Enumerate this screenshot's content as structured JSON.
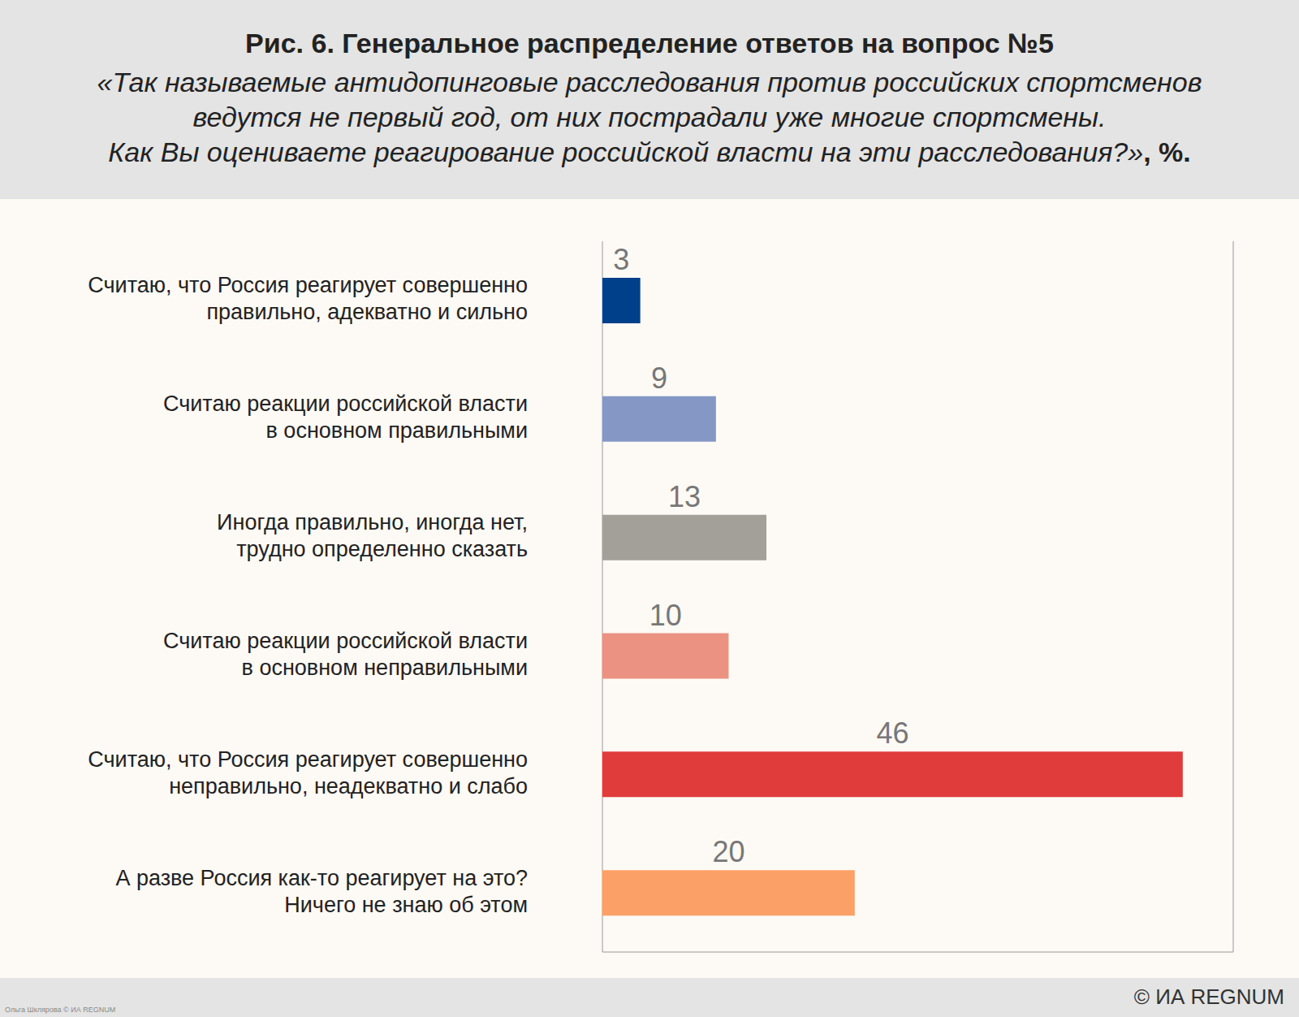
{
  "chart_data": {
    "type": "bar",
    "title": "Рис. 6. Генеральное распределение ответов на вопрос №5",
    "subtitle": "«Так называемые антидопинговые расследования против российских спортсменов\nведутся не первый год, от них пострадали уже многие спортсмены.\nКак Вы оцениваете реагирование российской власти на эти расследования?», %.",
    "categories": [
      "Считаю, что Россия реагирует совершенно\nправильно, адекватно и сильно",
      "Считаю реакции российской власти\nв основном правильными",
      "Иногда правильно, иногда нет,\nтрудно определенно сказать",
      "Считаю реакции российской власти\nв основном неправильными",
      "Считаю, что Россия реагирует совершенно\nнеправильно, неадекватно и слабо",
      "А разве Россия как-то реагирует на это?\nНичего не знаю об этом"
    ],
    "values": [
      3,
      9,
      13,
      10,
      46,
      20
    ],
    "colors": [
      "#003f8a",
      "#8497c5",
      "#a3a09a",
      "#ec9282",
      "#e03c3c",
      "#fba066"
    ],
    "xlim": [
      0,
      50
    ],
    "xticks": [
      0,
      10,
      20,
      30,
      40,
      50
    ],
    "orientation": "horizontal",
    "grid": true,
    "data_labels": true,
    "tick_labels": "y",
    "annotations": [
      "© ИА REGNUM",
      "Ольга Шклярова © ИА REGNUM"
    ]
  }
}
